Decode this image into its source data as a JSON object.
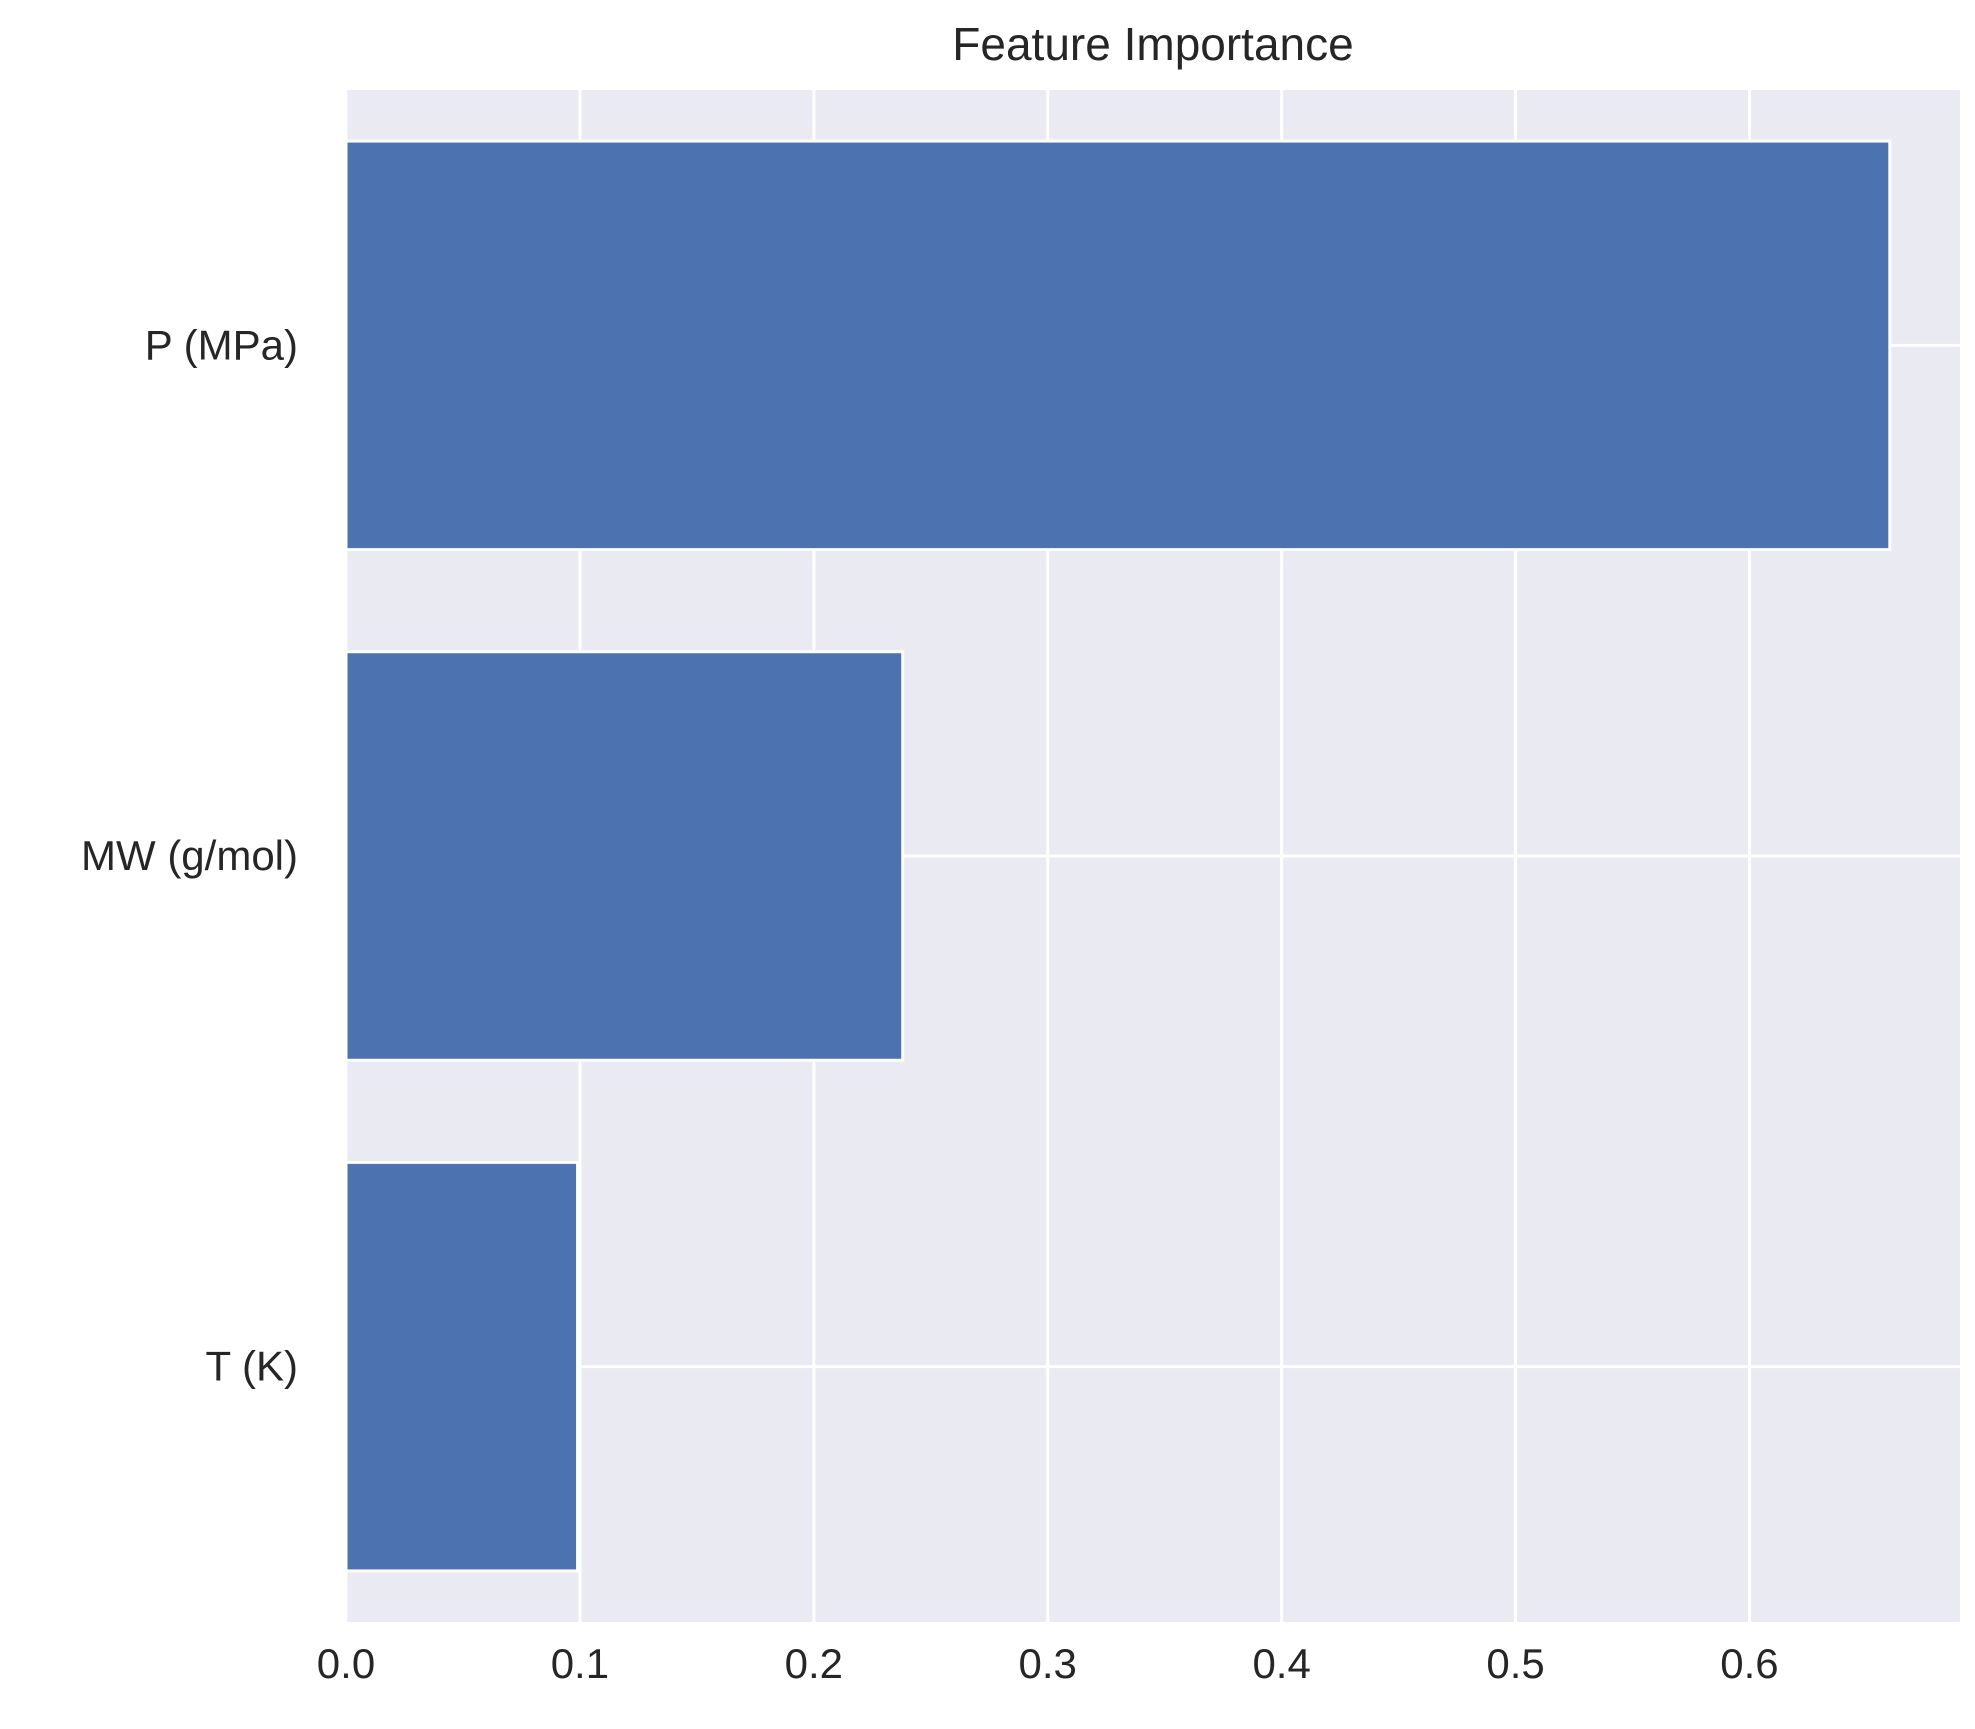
{
  "chart_data": {
    "type": "bar",
    "orientation": "horizontal",
    "title": "Feature Importance",
    "xlabel": "",
    "ylabel": "",
    "categories": [
      "P (MPa)",
      "MW (g/mol)",
      "T (K)"
    ],
    "values": [
      0.66,
      0.238,
      0.099
    ],
    "xlim": [
      0,
      0.69
    ],
    "xticks": [
      "0.0",
      "0.1",
      "0.2",
      "0.3",
      "0.4",
      "0.5",
      "0.6"
    ],
    "grid": true,
    "legend": "none",
    "colors": {
      "bar": "#4c72b0",
      "plot_background": "#eaeaf2",
      "grid": "#ffffff"
    }
  }
}
